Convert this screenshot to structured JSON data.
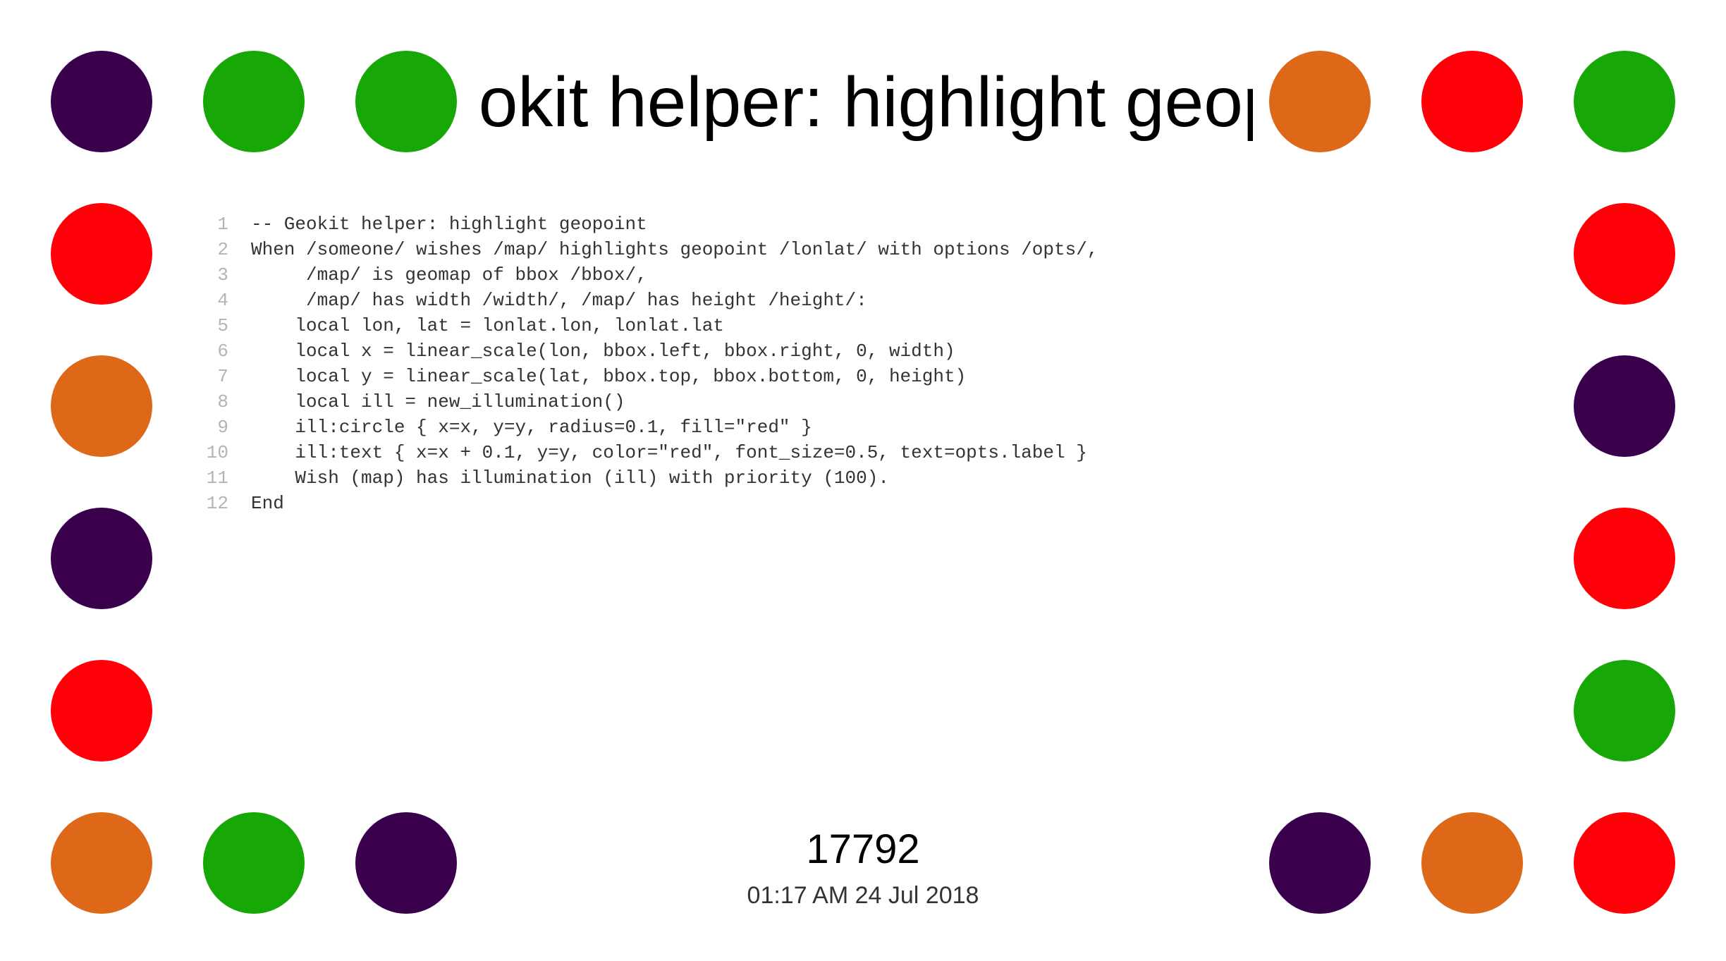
{
  "title": "-- Geokit helper: highlight geopoint",
  "code_lines": [
    {
      "num": "1",
      "text": "-- Geokit helper: highlight geopoint"
    },
    {
      "num": "2",
      "text": "When /someone/ wishes /map/ highlights geopoint /lonlat/ with options /opts/,"
    },
    {
      "num": "3",
      "text": "     /map/ is geomap of bbox /bbox/,"
    },
    {
      "num": "4",
      "text": "     /map/ has width /width/, /map/ has height /height/:"
    },
    {
      "num": "5",
      "text": "    local lon, lat = lonlat.lon, lonlat.lat"
    },
    {
      "num": "6",
      "text": "    local x = linear_scale(lon, bbox.left, bbox.right, 0, width)"
    },
    {
      "num": "7",
      "text": "    local y = linear_scale(lat, bbox.top, bbox.bottom, 0, height)"
    },
    {
      "num": "8",
      "text": "    local ill = new_illumination()"
    },
    {
      "num": "9",
      "text": "    ill:circle { x=x, y=y, radius=0.1, fill=\"red\" }"
    },
    {
      "num": "10",
      "text": "    ill:text { x=x + 0.1, y=y, color=\"red\", font_size=0.5, text=opts.label }"
    },
    {
      "num": "11",
      "text": "    Wish (map) has illumination (ill) with priority (100)."
    },
    {
      "num": "12",
      "text": "End"
    }
  ],
  "counter": "17792",
  "timestamp": "01:17 AM 24 Jul 2018",
  "colors": {
    "purple": "#3b004d",
    "green": "#17a808",
    "red": "#ff0009",
    "orange": "#dc6818"
  },
  "dot_colors": {
    "top": [
      "purple",
      "green",
      "green",
      "orange",
      "red",
      "green"
    ],
    "left": [
      "red",
      "orange",
      "purple",
      "red"
    ],
    "right": [
      "red",
      "purple",
      "red",
      "green"
    ],
    "bottom": [
      "orange",
      "green",
      "purple",
      "purple",
      "orange",
      "red"
    ]
  }
}
